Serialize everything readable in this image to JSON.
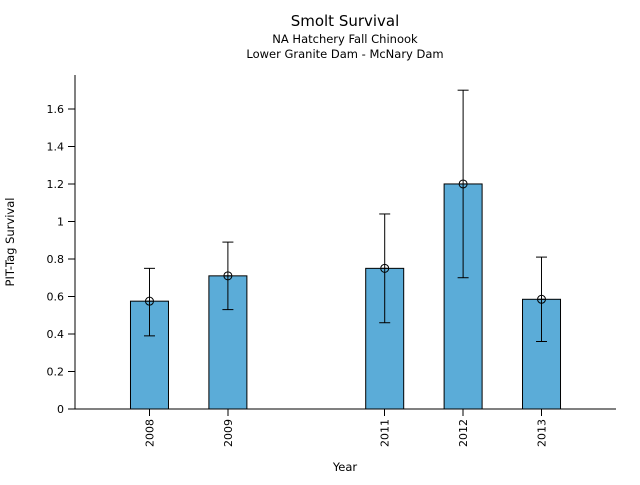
{
  "chart_data": {
    "type": "bar",
    "title": "Smolt Survival",
    "subtitle1": "NA Hatchery Fall Chinook",
    "subtitle2": "Lower Granite Dam - McNary Dam",
    "xlabel": "Year",
    "ylabel": "PIT-Tag Survival",
    "categories": [
      2008,
      2009,
      2011,
      2012,
      2013
    ],
    "x_tick_labels": [
      "2008",
      "2009",
      "2011",
      "2012",
      "2013"
    ],
    "values": [
      0.575,
      0.71,
      0.75,
      1.2,
      0.585
    ],
    "error_low": [
      0.39,
      0.53,
      0.46,
      0.7,
      0.36
    ],
    "error_high": [
      0.75,
      0.89,
      1.04,
      1.7,
      0.81
    ],
    "y_ticks": [
      0,
      0.2,
      0.4,
      0.6,
      0.8,
      1.0,
      1.2,
      1.4,
      1.6
    ],
    "y_tick_labels": [
      "0",
      "0.2",
      "0.4",
      "0.6",
      "0.8",
      "1",
      "1.2",
      "1.4",
      "1.6"
    ],
    "ylim": [
      0,
      1.781
    ],
    "xlim": [
      2007.05,
      2013.95
    ],
    "gap_years": [
      2010
    ],
    "bar_color": "#5BACD8",
    "bar_edge_color": "#000000",
    "error_color": "#000000",
    "axis_color": "#000000",
    "marker": "circle-plus",
    "grid": false,
    "legend": false,
    "x_tick_label_rotation": -90
  }
}
